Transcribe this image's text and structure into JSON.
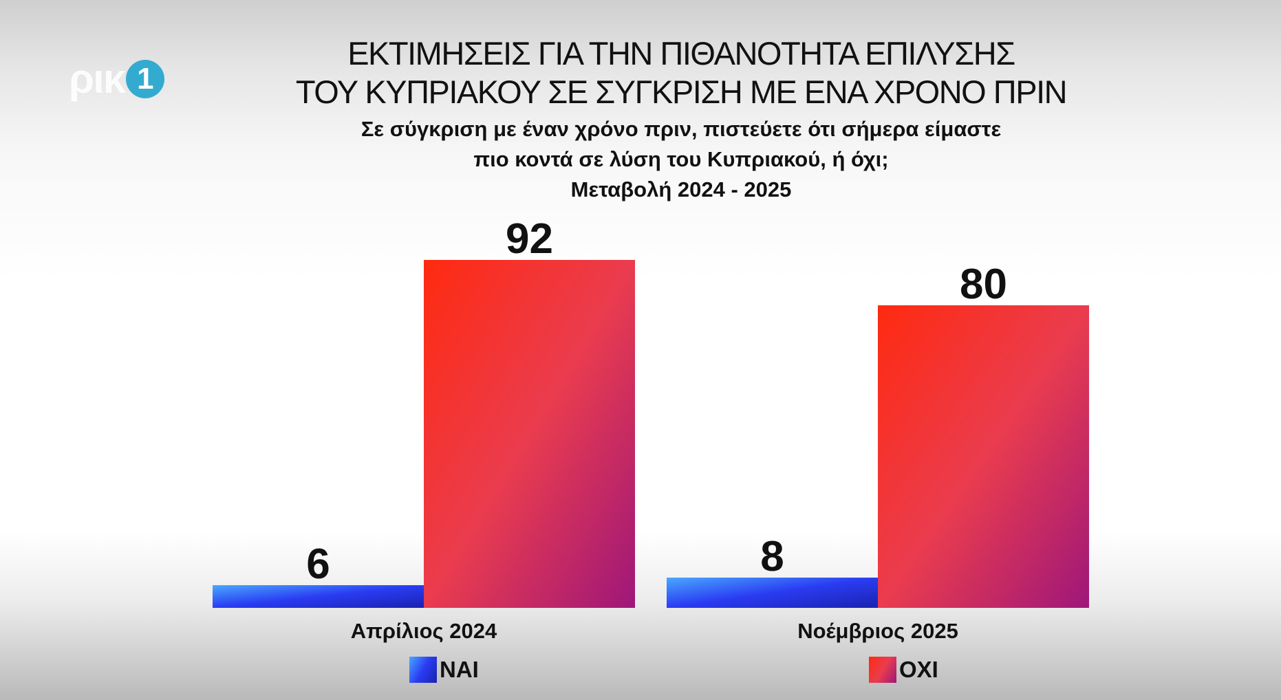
{
  "logo": {
    "text": "ρικ",
    "number": "1"
  },
  "title": {
    "line1": "ΕΚΤΙΜΗΣΕΙΣ ΓΙΑ ΤΗΝ ΠΙΘΑΝΟΤΗΤΑ ΕΠΙΛΥΣΗΣ",
    "line2": "ΤΟΥ ΚΥΠΡΙΑΚΟΥ ΣΕ ΣΥΓΚΡΙΣΗ ΜΕ ΕΝΑ ΧΡΟΝΟ ΠΡΙΝ"
  },
  "subtitle": {
    "line1": "Σε σύγκριση με έναν χρόνο πριν, πιστεύετε ότι σήμερα είμαστε",
    "line2": "πιο κοντά σε λύση του Κυπριακού, ή όχι;",
    "line3": "Μεταβολή 2024 - 2025"
  },
  "chart_data": {
    "type": "bar",
    "categories": [
      "Απρίλιος 2024",
      "Νοέμβριος 2025"
    ],
    "series": [
      {
        "name": "ΝΑΙ",
        "values": [
          6,
          8
        ]
      },
      {
        "name": "ΟΧΙ",
        "values": [
          92,
          80
        ]
      }
    ],
    "ylim": [
      0,
      100
    ],
    "grid": false,
    "legend_position": "bottom"
  },
  "colors": {
    "nai": [
      "#4aa8ff",
      "#2a3cf2",
      "#1a22b0"
    ],
    "oxi": [
      "#ff2a10",
      "#ea3c4e",
      "#9e177a"
    ]
  }
}
